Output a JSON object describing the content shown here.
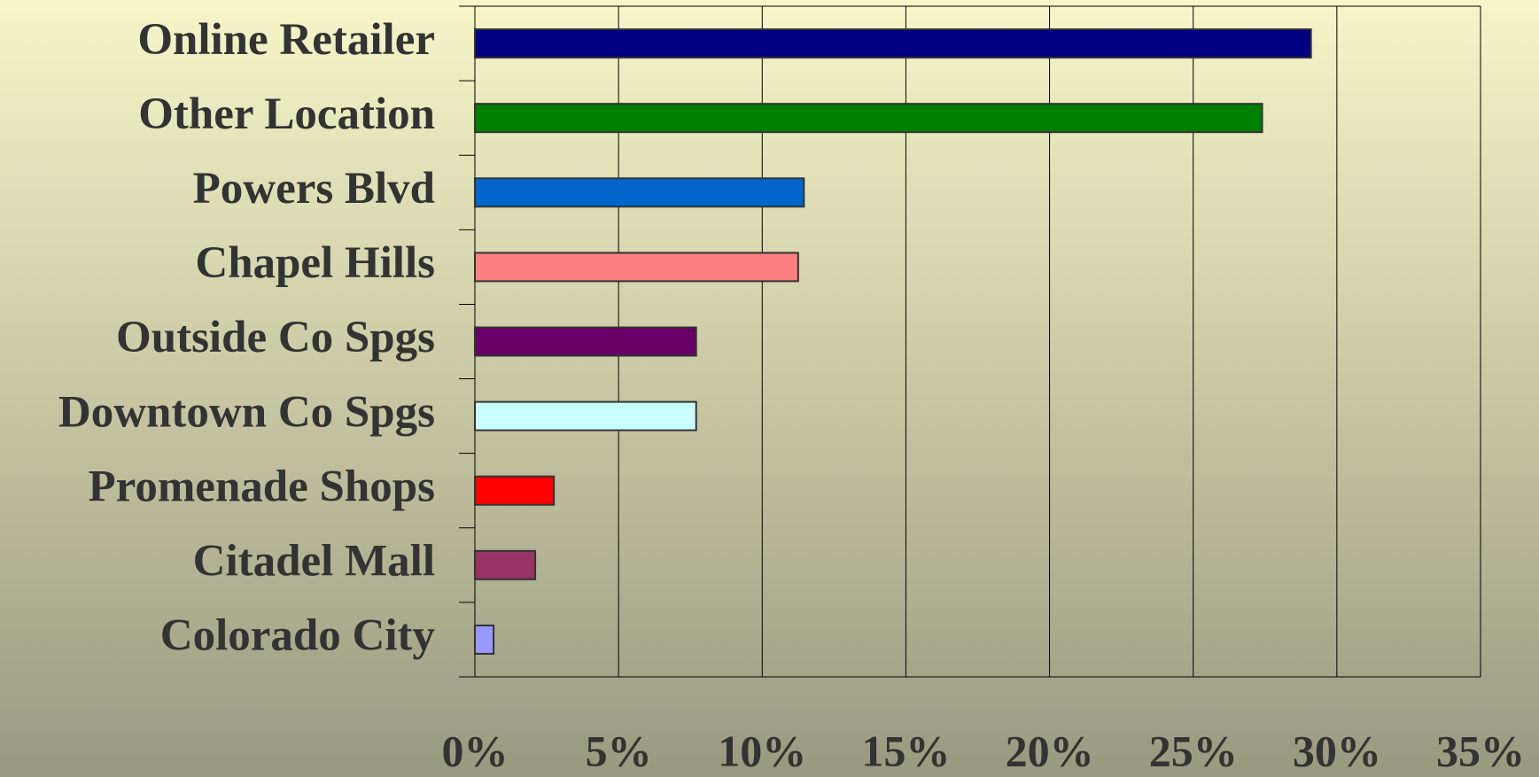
{
  "chart_data": {
    "type": "barh",
    "categories": [
      "Online Retailer",
      "Other Location",
      "Powers Blvd",
      "Chapel Hills",
      "Outside Co Spgs",
      "Downtown Co Spgs",
      "Promenade Shops",
      "Citadel Mall",
      "Colorado City"
    ],
    "values": [
      29.1,
      27.4,
      11.45,
      11.25,
      7.7,
      7.7,
      2.75,
      2.1,
      0.65
    ],
    "colors": [
      "#000080",
      "#008000",
      "#0066cc",
      "#ff8080",
      "#660066",
      "#ccffff",
      "#ff0000",
      "#993366",
      "#9999ff"
    ],
    "xlim": [
      0,
      35
    ],
    "xticks": [
      {
        "value": 0,
        "label": "0%"
      },
      {
        "value": 5,
        "label": "5%"
      },
      {
        "value": 10,
        "label": "10%"
      },
      {
        "value": 15,
        "label": "15%"
      },
      {
        "value": 20,
        "label": "20%"
      },
      {
        "value": 25,
        "label": "25%"
      },
      {
        "value": 30,
        "label": "30%"
      },
      {
        "value": 35,
        "label": "35%"
      }
    ],
    "grid": true
  }
}
